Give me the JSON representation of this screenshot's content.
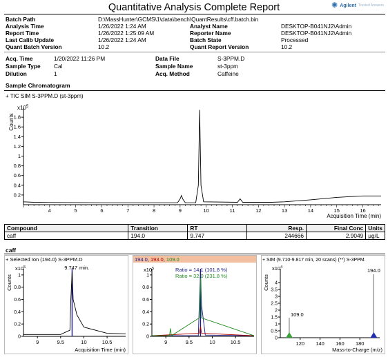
{
  "report_title": "Quantitative Analysis Complete Report",
  "logo": {
    "name": "Agilent",
    "subtitle": "Trusted Answers",
    "icon": "agilent-spark-icon",
    "color": "#2f6fb0"
  },
  "batch": {
    "batch_path_label": "Batch Path",
    "batch_path": "D:\\MassHunter\\GCMS\\1\\data\\bench\\QuantResults\\cff.batch.bin",
    "analysis_time_label": "Analysis Time",
    "analysis_time": "1/26/2022 1:24 AM",
    "report_time_label": "Report Time",
    "report_time": "1/26/2022 1:25:09 AM",
    "last_calib_label": "Last Calib Update",
    "last_calib": "1/26/2022 1:24 AM",
    "quant_batch_version_label": "Quant Batch Version",
    "quant_batch_version": "10.2",
    "analyst_name_label": "Analyst Name",
    "analyst_name": "DESKTOP-B041NJ2\\Admin",
    "reporter_name_label": "Reporter Name",
    "reporter_name": "DESKTOP-B041NJ2\\Admin",
    "batch_state_label": "Batch State",
    "batch_state": "Processed",
    "quant_report_version_label": "Quant Report Version",
    "quant_report_version": "10.2"
  },
  "sample": {
    "acq_time_label": "Acq. Time",
    "acq_time": "1/20/2022 11:26 PM",
    "sample_type_label": "Sample Type",
    "sample_type": "Cal",
    "dilution_label": "Dilution",
    "dilution": "1",
    "data_file_label": "Data File",
    "data_file": "S-3PPM.D",
    "sample_name_label": "Sample Name",
    "sample_name": "st-3ppm",
    "acq_method_label": "Acq. Method",
    "acq_method": "Caffeine"
  },
  "sample_chromatogram": {
    "section_title": "Sample Chromatogram",
    "trace_label": "+ TIC SIM S-3PPM.D (st-3ppm)",
    "y_axis_label": "Counts",
    "y_scale": "x10",
    "y_scale_exp": "5",
    "x_axis_label": "Acquisition Time (min)",
    "y_ticks": [
      "1.8",
      "1.6",
      "1.4",
      "1.2",
      "1",
      "0.8",
      "0.6",
      "0.4",
      "0.2"
    ],
    "x_ticks": [
      "4",
      "5",
      "6",
      "7",
      "8",
      "9",
      "10",
      "11",
      "12",
      "13",
      "14",
      "15",
      "16"
    ]
  },
  "results_table": {
    "headers": [
      "Compound",
      "Transition",
      "RT",
      "Resp.",
      "Final Conc",
      "Units"
    ],
    "rows": [
      [
        "caff",
        "194.0",
        "9.747",
        "244666",
        "2.9049",
        "µg/L"
      ]
    ]
  },
  "compound_section": {
    "title": "caff",
    "panel1": {
      "label": "+ Selected Ion (194.0) S-3PPM.D",
      "y_axis_label": "Counts",
      "y_scale": "x10",
      "y_scale_exp": "5",
      "peak_label": "9.747",
      "peak_unit": "min.",
      "x_axis_label": "Acquisition Time (min)"
    },
    "panel2": {
      "ions": [
        "194.0",
        "193.0",
        "109.0"
      ],
      "ion_colors": [
        "#1a1a8c",
        "#b00000",
        "#1f8a1f"
      ],
      "header_bg": "#f2c0a0",
      "y_scale": "x10",
      "y_scale_exp": "5",
      "ratio1": "Ratio = 14.1 (101.8 %)",
      "ratio2": "Ratio = 32.0 (231.8 %)"
    },
    "panel3": {
      "label": "+ SIM (9.710-9.817 min, 20 scans) (**) S-3PPM.",
      "y_axis_label": "Counts",
      "y_scale": "x10",
      "y_scale_exp": "4",
      "x_axis_label": "Mass-to-Charge (m/z)",
      "peak1_label": "109.0",
      "peak2_label": "194.0"
    }
  },
  "chart_data": [
    {
      "type": "line",
      "title": "+ TIC SIM S-3PPM.D (st-3ppm)",
      "xlabel": "Acquisition Time (min)",
      "ylabel": "Counts (x10^5)",
      "xlim": [
        3,
        16.7
      ],
      "ylim": [
        0,
        2.0
      ],
      "series": [
        {
          "x": [
            3.0,
            3.4,
            4.0,
            6.0,
            8.0,
            8.9,
            9.0,
            9.05,
            9.1,
            9.2,
            9.6,
            9.7,
            9.75,
            9.8,
            9.9,
            11.2,
            11.3,
            11.4,
            12.5,
            13.0,
            14.0,
            15.0,
            16.0,
            16.7
          ],
          "y": [
            0.06,
            0.05,
            0.045,
            0.04,
            0.04,
            0.04,
            0.12,
            0.19,
            0.12,
            0.04,
            0.04,
            0.4,
            1.95,
            0.4,
            0.06,
            0.05,
            0.12,
            0.05,
            0.05,
            0.06,
            0.1,
            0.15,
            0.18,
            0.18
          ]
        }
      ]
    },
    {
      "type": "line",
      "title": "+ Selected Ion (194.0) S-3PPM.D",
      "xlabel": "Acquisition Time (min)",
      "ylabel": "Counts (x10^5)",
      "xlim": [
        8.7,
        10.9
      ],
      "ylim": [
        0,
        1.1
      ],
      "series": [
        {
          "name": "194.0",
          "x": [
            8.7,
            9.5,
            9.7,
            9.72,
            9.747,
            9.77,
            9.85,
            10.0,
            10.5,
            10.9
          ],
          "y": [
            0.03,
            0.03,
            0.1,
            0.6,
            1.05,
            0.6,
            0.35,
            0.15,
            0.05,
            0.04
          ]
        }
      ]
    },
    {
      "type": "line",
      "title": "194.0, 193.0, 109.0",
      "xlabel": "",
      "ylabel": "",
      "xlim": [
        8.7,
        10.9
      ],
      "ylim": [
        0,
        1.1
      ],
      "series": [
        {
          "name": "194.0",
          "x": [
            8.7,
            9.7,
            9.72,
            9.747,
            9.77,
            9.85,
            10.9
          ],
          "y": [
            0.01,
            0.01,
            0.5,
            1.05,
            0.5,
            0.02,
            0.01
          ]
        },
        {
          "name": "193.0",
          "x": [
            8.7,
            9.72,
            9.747,
            9.77,
            10.9
          ],
          "y": [
            0.01,
            0.05,
            0.16,
            0.05,
            0.01
          ]
        },
        {
          "name": "109.0",
          "x": [
            8.7,
            9.08,
            9.1,
            9.12,
            9.72,
            9.747,
            9.77,
            10.9
          ],
          "y": [
            0.01,
            0.01,
            0.13,
            0.01,
            0.3,
            0.95,
            0.3,
            0.01
          ]
        }
      ]
    },
    {
      "type": "bar",
      "title": "+ SIM (9.710-9.817 min, 20 scans) (**) S-3PPM.",
      "xlabel": "Mass-to-Charge (m/z)",
      "ylabel": "Counts (x10^4)",
      "xlim": [
        100,
        200
      ],
      "ylim": [
        0,
        5
      ],
      "x": [
        109.0,
        193.0,
        194.0
      ],
      "values": [
        1.45,
        0.25,
        4.6
      ]
    }
  ]
}
